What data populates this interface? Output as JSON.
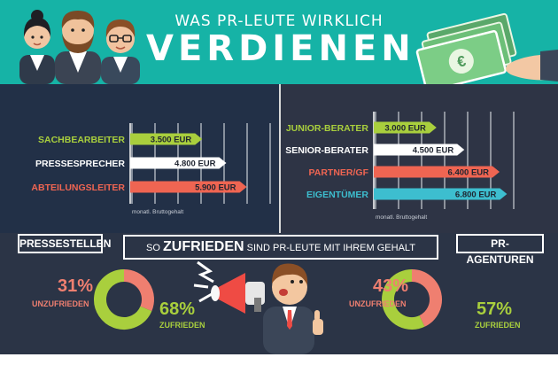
{
  "header": {
    "title_small": "WAS PR-LEUTE WIRKLICH",
    "title_big": "VERDIENEN",
    "bill_symbol": "€"
  },
  "chart_data": [
    {
      "type": "bar",
      "orientation": "horizontal",
      "categories": [
        "SACHBEARBEITER",
        "PRESSESPRECHER",
        "ABTEILUNGSLEITER"
      ],
      "values": [
        3500,
        4800,
        5900
      ],
      "value_labels": [
        "3.500 EUR",
        "4.800 EUR",
        "5.900 EUR"
      ],
      "colors": [
        "#a9cf3d",
        "#ffffff",
        "#ef6552"
      ],
      "xlabel": "monatl. Bruttogehalt",
      "xlim": [
        0,
        8500
      ]
    },
    {
      "type": "bar",
      "orientation": "horizontal",
      "categories": [
        "JUNIOR-BERATER",
        "SENIOR-BERATER",
        "PARTNER/GF",
        "EIGENTÜMER"
      ],
      "values": [
        3000,
        4500,
        6400,
        6800
      ],
      "value_labels": [
        "3.000 EUR",
        "4.500 EUR",
        "6.400 EUR",
        "6.800 EUR"
      ],
      "colors": [
        "#a9cf3d",
        "#ffffff",
        "#ef6552",
        "#3dbecf"
      ],
      "xlabel": "monatl. Bruttogehalt",
      "xlim": [
        0,
        8500
      ]
    },
    {
      "type": "pie",
      "title": "PRESSESTELLEN",
      "slices": [
        {
          "label": "UNZUFRIEDEN",
          "value": 31,
          "display": "31%",
          "color": "#ef7f70"
        },
        {
          "label": "ZUFRIEDEN",
          "value": 68,
          "display": "68%",
          "color": "#a9cf3d"
        }
      ]
    },
    {
      "type": "pie",
      "title": "PR-AGENTUREN",
      "slices": [
        {
          "label": "UNZUFRIEDEN",
          "value": 43,
          "display": "43%",
          "color": "#ef7f70"
        },
        {
          "label": "ZUFRIEDEN",
          "value": 57,
          "display": "57%",
          "color": "#a9cf3d"
        }
      ]
    }
  ],
  "banner": {
    "pre": "SO",
    "highlight": "ZUFRIEDEN",
    "post": "SIND PR-LEUTE MIT IHREM GEHALT"
  },
  "labels": {
    "left_box": "PRESSESTELLEN",
    "right_box": "PR-AGENTUREN"
  },
  "colors": {
    "teal": "#16b3a6",
    "green": "#a9cf3d",
    "red": "#ef6552",
    "blue": "#3dbecf",
    "navy": "#223047"
  }
}
